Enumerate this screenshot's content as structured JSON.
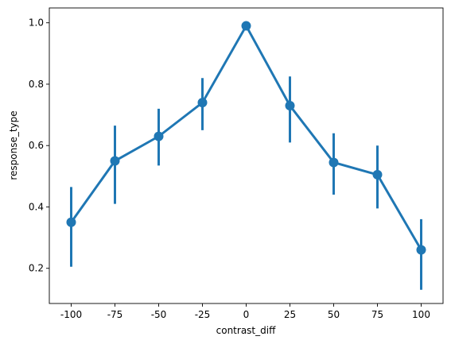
{
  "chart_data": {
    "type": "line",
    "title": "",
    "xlabel": "contrast_diff",
    "ylabel": "response_type",
    "categories": [
      "-100",
      "-75",
      "-50",
      "-25",
      "0",
      "25",
      "50",
      "75",
      "100"
    ],
    "series": [
      {
        "values": [
          0.35,
          0.55,
          0.63,
          0.74,
          0.99,
          0.73,
          0.545,
          0.505,
          0.26
        ],
        "error_low": [
          0.205,
          0.41,
          0.535,
          0.65,
          0.985,
          0.61,
          0.44,
          0.395,
          0.13
        ],
        "error_high": [
          0.465,
          0.665,
          0.72,
          0.82,
          1.0,
          0.825,
          0.64,
          0.6,
          0.36
        ]
      }
    ],
    "ylim": [
      0.0854,
      1.0484
    ],
    "yticks": [
      0.2,
      0.4,
      0.6,
      0.8,
      1.0
    ],
    "ytick_labels": [
      "0.2",
      "0.4",
      "0.6",
      "0.8",
      "1.0"
    ],
    "grid": false,
    "colors": {
      "series": "#1f77b4",
      "axis": "#000000"
    }
  }
}
